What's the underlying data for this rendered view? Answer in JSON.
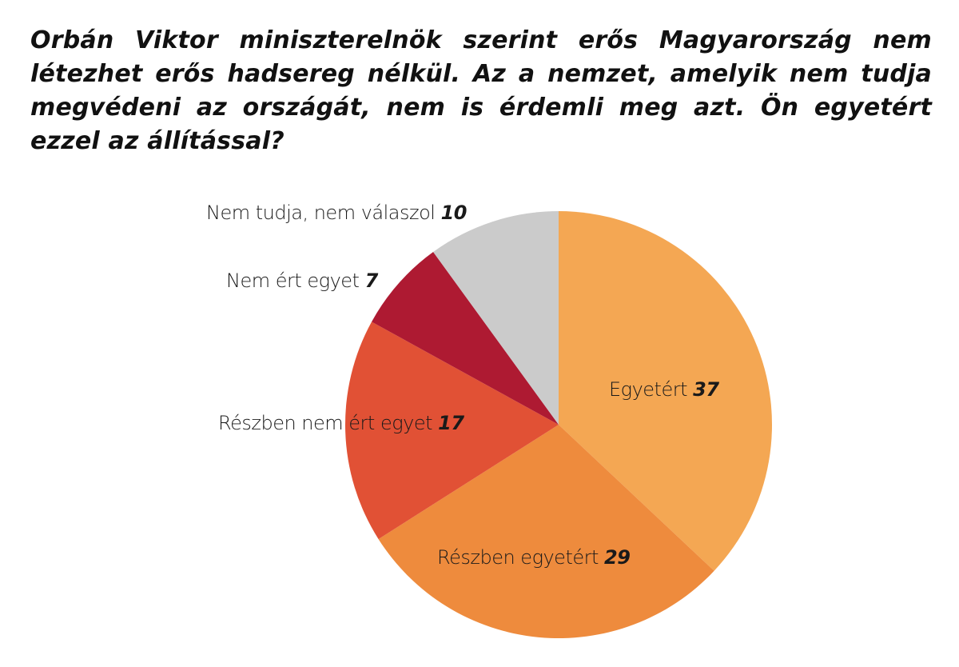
{
  "title": "Orbán Viktor miniszterelnök szerint erős Magyarország nem létezhet erős hadsereg nélkül. Az a nemzet, amelyik nem tudja megvédeni az országát, nem is érdemli meg azt. Ön egyetért ezzel az állítással?",
  "chart_data": {
    "type": "pie",
    "title": "Orbán Viktor miniszterelnök szerint erős Magyarország nem létezhet erős hadsereg nélkül. Az a nemzet, amelyik nem tudja megvédeni az országát, nem is érdemli meg azt. Ön egyetért ezzel az állítással?",
    "categories": [
      "Egyetért",
      "Részben egyetért",
      "Részben nem ért egyet",
      "Nem ért egyet",
      "Nem tudja, nem válaszol"
    ],
    "values": [
      37,
      29,
      17,
      7,
      10
    ],
    "colors": [
      "#F4A753",
      "#EE8B3D",
      "#E15135",
      "#AE1A32",
      "#CBCBCB"
    ],
    "start_angle": "12 o'clock, clockwise",
    "legend": "none (direct labels)"
  },
  "labels": {
    "s0": {
      "text": "Egyetért",
      "value": "37"
    },
    "s1": {
      "text": "Részben egyetért",
      "value": "29"
    },
    "s2": {
      "text": "Részben nem ért egyet",
      "value": "17"
    },
    "s3": {
      "text": "Nem ért egyet",
      "value": "7"
    },
    "s4": {
      "text": "Nem tudja, nem válaszol",
      "value": "10"
    }
  }
}
